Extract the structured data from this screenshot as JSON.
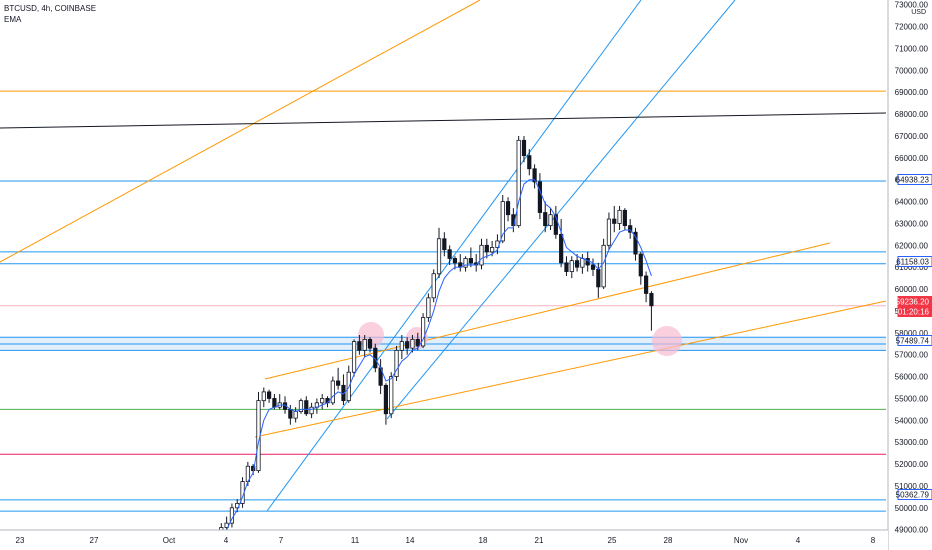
{
  "legend": {
    "symbol_line": "BTCUSD, 4h, COINBASE",
    "indicator": "EMA"
  },
  "colors": {
    "up": "#ffffff",
    "down": "#131722",
    "wick": "#131722",
    "ema": "#2962ff",
    "blue_line": "#2196f3",
    "orange_line": "#ff9800",
    "green_line": "#4caf50",
    "pink_line": "#e91e63",
    "black_line": "#131722",
    "zone_fill": "#e3eefb",
    "highlight_circle": "#f8bbd0",
    "price_tag_red": "#f23645",
    "price_tag_blue": "#2962ff"
  },
  "chart_data": {
    "type": "candlestick",
    "title": "BTCUSD, 4h, COINBASE",
    "currency": "USD",
    "y_axis_ticks": [
      "73000.00",
      "72000.00",
      "71000.00",
      "70000.00",
      "69000.00",
      "68000.00",
      "67000.00",
      "66000.00",
      "65000.00",
      "64000.00",
      "63000.00",
      "62000.00",
      "61000.00",
      "60000.00",
      "59000.00",
      "58000.00",
      "57000.00",
      "56000.00",
      "55000.00",
      "54000.00",
      "53000.00",
      "52000.00",
      "51000.00",
      "50000.00",
      "49000.00"
    ],
    "x_axis_ticks": [
      "23",
      "27",
      "Oct",
      "4",
      "7",
      "11",
      "14",
      "18",
      "21",
      "25",
      "28",
      "Nov",
      "4",
      "8"
    ],
    "price_labels": [
      {
        "text": "64938.23",
        "style": "blue"
      },
      {
        "text": "61158.03",
        "style": "blue"
      },
      {
        "text": "59236.20",
        "style": "red"
      },
      {
        "text": "01:20:16",
        "style": "red"
      },
      {
        "text": "57489.74",
        "style": "blue"
      },
      {
        "text": "50362.79",
        "style": "blue"
      }
    ],
    "horizontal_levels": [
      {
        "price": 69050,
        "color": "orange"
      },
      {
        "price": 64938.23,
        "color": "blue"
      },
      {
        "price": 61700,
        "color": "blue"
      },
      {
        "price": 61158.03,
        "color": "blue"
      },
      {
        "price": 59236.2,
        "color": "pink_light"
      },
      {
        "price": 57800,
        "color": "blue"
      },
      {
        "price": 57489.74,
        "color": "blue"
      },
      {
        "price": 57200,
        "color": "blue"
      },
      {
        "price": 54500,
        "color": "green"
      },
      {
        "price": 52450,
        "color": "pink"
      },
      {
        "price": 50362.79,
        "color": "blue"
      },
      {
        "price": 49850,
        "color": "blue"
      }
    ],
    "zone": {
      "from": 57200,
      "to": 57800
    },
    "ohlc": [
      [
        47800,
        48600,
        47600,
        48400
      ],
      [
        48400,
        49300,
        48200,
        49100
      ],
      [
        49100,
        49600,
        48800,
        49300
      ],
      [
        49300,
        50200,
        49100,
        50000
      ],
      [
        50000,
        50400,
        49800,
        50200
      ],
      [
        50200,
        51400,
        50000,
        51200
      ],
      [
        51200,
        52100,
        51000,
        51900
      ],
      [
        51900,
        52000,
        51500,
        51700
      ],
      [
        51700,
        55300,
        51600,
        54900
      ],
      [
        54900,
        55500,
        54600,
        55300
      ],
      [
        55300,
        55400,
        54800,
        55000
      ],
      [
        55000,
        55200,
        54500,
        54600
      ],
      [
        54600,
        55200,
        54500,
        54800
      ],
      [
        54800,
        55100,
        54300,
        54500
      ],
      [
        54500,
        54700,
        53800,
        54100
      ],
      [
        54100,
        54600,
        53900,
        54400
      ],
      [
        54400,
        55000,
        54300,
        54900
      ],
      [
        54900,
        55100,
        54200,
        54300
      ],
      [
        54300,
        54800,
        54100,
        54600
      ],
      [
        54600,
        55000,
        54300,
        54800
      ],
      [
        54800,
        55200,
        54500,
        55000
      ],
      [
        55000,
        55100,
        54600,
        54800
      ],
      [
        54800,
        56000,
        54700,
        55800
      ],
      [
        55800,
        56400,
        55400,
        55600
      ],
      [
        55600,
        56100,
        54700,
        54900
      ],
      [
        54900,
        56500,
        54800,
        56200
      ],
      [
        56200,
        57700,
        56000,
        57600
      ],
      [
        57600,
        57900,
        57000,
        57200
      ],
      [
        57200,
        57900,
        56900,
        57700
      ],
      [
        57700,
        57800,
        57100,
        57300
      ],
      [
        57300,
        57500,
        56200,
        56400
      ],
      [
        56400,
        56800,
        55200,
        55600
      ],
      [
        55600,
        55700,
        53800,
        54300
      ],
      [
        54300,
        56200,
        54100,
        56000
      ],
      [
        56000,
        57400,
        55800,
        57200
      ],
      [
        57200,
        57900,
        56800,
        57600
      ],
      [
        57600,
        57800,
        57000,
        57300
      ],
      [
        57300,
        57900,
        57100,
        57700
      ],
      [
        57700,
        58000,
        57200,
        57400
      ],
      [
        57400,
        58900,
        57300,
        58700
      ],
      [
        58700,
        59800,
        58500,
        59600
      ],
      [
        59600,
        60900,
        59400,
        60700
      ],
      [
        60700,
        62800,
        60500,
        62300
      ],
      [
        62300,
        62600,
        61500,
        61800
      ],
      [
        61800,
        62000,
        61100,
        61400
      ],
      [
        61400,
        61500,
        60900,
        61200
      ],
      [
        61200,
        61600,
        60800,
        61000
      ],
      [
        61000,
        61500,
        60800,
        61400
      ],
      [
        61400,
        61900,
        61000,
        61200
      ],
      [
        61200,
        61600,
        60800,
        61100
      ],
      [
        61100,
        62300,
        60900,
        62000
      ],
      [
        62000,
        62300,
        61400,
        61700
      ],
      [
        61700,
        62200,
        61500,
        61900
      ],
      [
        61900,
        62500,
        61600,
        62200
      ],
      [
        62200,
        64300,
        62100,
        64000
      ],
      [
        64000,
        64200,
        63100,
        63400
      ],
      [
        63400,
        63700,
        62600,
        62900
      ],
      [
        62900,
        67000,
        62800,
        66800
      ],
      [
        66800,
        67000,
        65800,
        66100
      ],
      [
        66100,
        66400,
        65200,
        65500
      ],
      [
        65500,
        65700,
        64600,
        64900
      ],
      [
        64900,
        65300,
        63200,
        63500
      ],
      [
        63500,
        64000,
        62600,
        62900
      ],
      [
        62900,
        63700,
        62700,
        63400
      ],
      [
        63400,
        63800,
        62300,
        62500
      ],
      [
        62500,
        63200,
        61000,
        61200
      ],
      [
        61200,
        61500,
        60600,
        60800
      ],
      [
        60800,
        61500,
        60500,
        61300
      ],
      [
        61300,
        61600,
        60800,
        61000
      ],
      [
        61000,
        61600,
        60700,
        61400
      ],
      [
        61400,
        61700,
        60800,
        61100
      ],
      [
        61100,
        61400,
        60600,
        60900
      ],
      [
        60900,
        61200,
        59600,
        60100
      ],
      [
        60100,
        62300,
        60000,
        62000
      ],
      [
        62000,
        63500,
        61800,
        63200
      ],
      [
        63200,
        63800,
        62600,
        63000
      ],
      [
        63000,
        63800,
        62700,
        63600
      ],
      [
        63600,
        63700,
        62700,
        62900
      ],
      [
        62900,
        63200,
        62300,
        62600
      ],
      [
        62600,
        62800,
        61300,
        61600
      ],
      [
        61600,
        61700,
        60200,
        60600
      ],
      [
        60600,
        60800,
        59400,
        59800
      ],
      [
        59800,
        59900,
        58100,
        59236
      ]
    ],
    "ema": [
      48000,
      48600,
      49000,
      49500,
      49900,
      50500,
      51200,
      51600,
      53000,
      54000,
      54500,
      54600,
      54700,
      54700,
      54500,
      54400,
      54500,
      54500,
      54500,
      54600,
      54700,
      54800,
      55100,
      55300,
      55200,
      55500,
      56100,
      56500,
      56900,
      57000,
      56800,
      56400,
      55800,
      55900,
      56300,
      56700,
      56900,
      57200,
      57300,
      57700,
      58300,
      59000,
      59900,
      60500,
      60800,
      61000,
      61000,
      61100,
      61100,
      61100,
      61400,
      61500,
      61600,
      61800,
      62500,
      62800,
      62800,
      64000,
      64800,
      65000,
      65000,
      64500,
      63900,
      63700,
      63300,
      62600,
      61900,
      61700,
      61500,
      61400,
      61300,
      61200,
      60900,
      61200,
      61800,
      62200,
      62600,
      62700,
      62700,
      62400,
      61900,
      61300,
      60600
    ],
    "trend_lines": [
      {
        "color": "blue",
        "points": [
          [
            267,
            511
          ],
          [
            641,
            0
          ]
        ]
      },
      {
        "color": "blue",
        "points": [
          [
            387,
            419
          ],
          [
            735,
            0
          ]
        ]
      },
      {
        "color": "orange",
        "points": [
          [
            0,
            262
          ],
          [
            480,
            0
          ]
        ]
      },
      {
        "color": "orange",
        "points": [
          [
            265,
            379
          ],
          [
            830,
            243
          ]
        ]
      },
      {
        "color": "orange",
        "points": [
          [
            255,
            437
          ],
          [
            886,
            301
          ]
        ]
      },
      {
        "color": "black",
        "points": [
          [
            0,
            128
          ],
          [
            886,
            113
          ]
        ]
      }
    ],
    "highlight_circles": [
      {
        "x": 371,
        "y": 335,
        "r": 13
      },
      {
        "x": 417,
        "y": 338,
        "r": 11
      },
      {
        "x": 667,
        "y": 341,
        "r": 15
      }
    ]
  }
}
